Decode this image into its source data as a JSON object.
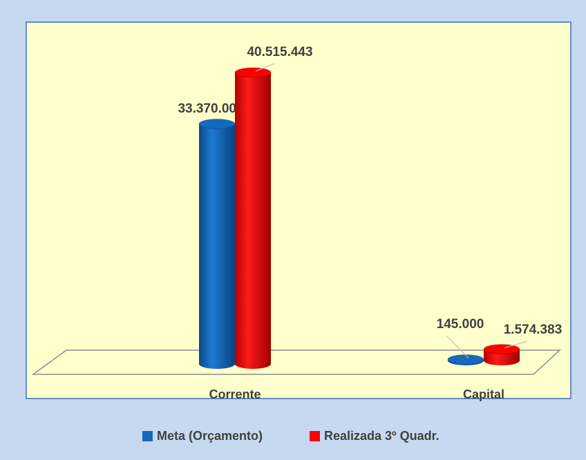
{
  "chart_data": {
    "type": "bar3d",
    "categories": [
      "Corrente",
      "Capital"
    ],
    "series": [
      {
        "name": "Meta (Orçamento)",
        "color": "#1569bf",
        "values": [
          33370000,
          145000
        ],
        "value_labels": [
          "33.370.000",
          "145.000"
        ]
      },
      {
        "name": "Realizada 3º Quadr.",
        "color": "#ff0000",
        "values": [
          40515443,
          1574383
        ],
        "value_labels": [
          "40.515.443",
          "1.574.383"
        ]
      }
    ],
    "legend": "bottom"
  }
}
